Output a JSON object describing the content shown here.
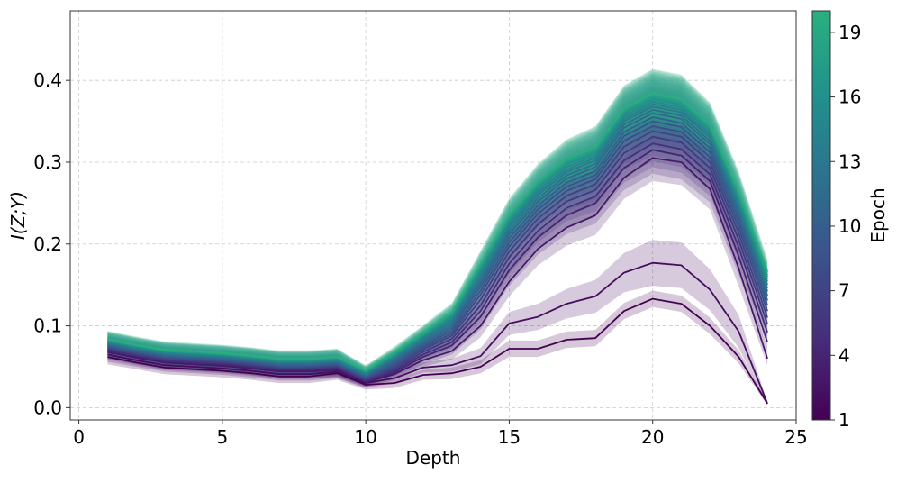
{
  "colors": {
    "viridis_stops": [
      "#440154",
      "#472d7b",
      "#3b528b",
      "#2c728e",
      "#21918c",
      "#28ae80",
      "#5ec962",
      "#addc30"
    ],
    "colormap_max_fraction": 0.72
  },
  "chart_data": {
    "type": "line",
    "xlabel": "Depth",
    "ylabel": "I(Z;Y)",
    "xlim": [
      -0.3,
      25.0
    ],
    "ylim": [
      -0.015,
      0.485
    ],
    "xticks": [
      0,
      5,
      10,
      15,
      20,
      25
    ],
    "yticks": [
      0.0,
      0.1,
      0.2,
      0.3,
      0.4
    ],
    "grid": true,
    "colorbar": {
      "label": "Epoch",
      "min": 1,
      "max": 20,
      "ticks": [
        1,
        4,
        7,
        10,
        13,
        16,
        19
      ]
    },
    "x": [
      1,
      2,
      3,
      4,
      5,
      6,
      7,
      8,
      9,
      10,
      11,
      12,
      13,
      14,
      15,
      16,
      17,
      18,
      19,
      20,
      21,
      22,
      23,
      24
    ],
    "series": [
      {
        "name": "Epoch 1",
        "epoch": 1,
        "values": [
          0.062,
          0.055,
          0.049,
          0.047,
          0.045,
          0.042,
          0.038,
          0.038,
          0.042,
          0.028,
          0.03,
          0.04,
          0.042,
          0.05,
          0.072,
          0.072,
          0.083,
          0.085,
          0.118,
          0.133,
          0.127,
          0.1,
          0.062,
          0.005
        ],
        "band": [
          0.009,
          0.008,
          0.008,
          0.008,
          0.008,
          0.008,
          0.008,
          0.008,
          0.008,
          0.006,
          0.006,
          0.006,
          0.007,
          0.008,
          0.01,
          0.01,
          0.01,
          0.01,
          0.01,
          0.01,
          0.01,
          0.01,
          0.008,
          0.002
        ]
      },
      {
        "name": "Epoch 2",
        "epoch": 2,
        "values": [
          0.065,
          0.058,
          0.052,
          0.05,
          0.048,
          0.045,
          0.041,
          0.041,
          0.044,
          0.03,
          0.036,
          0.049,
          0.052,
          0.063,
          0.103,
          0.111,
          0.127,
          0.136,
          0.165,
          0.177,
          0.174,
          0.144,
          0.093,
          0.005
        ],
        "band": [
          0.009,
          0.008,
          0.008,
          0.008,
          0.008,
          0.008,
          0.008,
          0.008,
          0.008,
          0.006,
          0.006,
          0.006,
          0.008,
          0.01,
          0.014,
          0.016,
          0.018,
          0.02,
          0.024,
          0.028,
          0.028,
          0.025,
          0.02,
          0.002
        ]
      },
      {
        "name": "Epoch 3",
        "epoch": 3,
        "values": [
          0.068,
          0.061,
          0.055,
          0.053,
          0.051,
          0.048,
          0.044,
          0.044,
          0.046,
          0.031,
          0.041,
          0.058,
          0.069,
          0.1,
          0.154,
          0.194,
          0.22,
          0.235,
          0.281,
          0.305,
          0.3,
          0.267,
          0.17,
          0.06
        ],
        "band": [
          0.009,
          0.009,
          0.009,
          0.009,
          0.009,
          0.009,
          0.009,
          0.009,
          0.009,
          0.006,
          0.007,
          0.008,
          0.01,
          0.014,
          0.018,
          0.02,
          0.022,
          0.024,
          0.026,
          0.028,
          0.028,
          0.025,
          0.022,
          0.008
        ]
      },
      {
        "name": "Epoch 4",
        "epoch": 4,
        "values": [
          0.07,
          0.063,
          0.057,
          0.055,
          0.053,
          0.05,
          0.046,
          0.046,
          0.048,
          0.032,
          0.043,
          0.062,
          0.076,
          0.111,
          0.168,
          0.208,
          0.235,
          0.25,
          0.293,
          0.315,
          0.308,
          0.277,
          0.185,
          0.08
        ],
        "band": [
          0.01,
          0.01,
          0.01,
          0.01,
          0.01,
          0.01,
          0.01,
          0.01,
          0.01,
          0.006,
          0.007,
          0.009,
          0.011,
          0.015,
          0.019,
          0.021,
          0.023,
          0.025,
          0.027,
          0.029,
          0.029,
          0.026,
          0.023,
          0.01
        ]
      },
      {
        "name": "Epoch 5",
        "epoch": 5,
        "values": [
          0.071,
          0.064,
          0.058,
          0.056,
          0.054,
          0.051,
          0.047,
          0.047,
          0.049,
          0.033,
          0.045,
          0.065,
          0.08,
          0.118,
          0.176,
          0.216,
          0.244,
          0.258,
          0.302,
          0.323,
          0.316,
          0.285,
          0.196,
          0.092
        ],
        "band": [
          0.01,
          0.01,
          0.01,
          0.01,
          0.01,
          0.01,
          0.01,
          0.01,
          0.01,
          0.006,
          0.007,
          0.009,
          0.011,
          0.015,
          0.019,
          0.021,
          0.023,
          0.025,
          0.027,
          0.029,
          0.029,
          0.026,
          0.023,
          0.012
        ]
      },
      {
        "name": "Epoch 6",
        "epoch": 6,
        "values": [
          0.072,
          0.065,
          0.059,
          0.057,
          0.055,
          0.052,
          0.048,
          0.048,
          0.05,
          0.034,
          0.047,
          0.068,
          0.084,
          0.125,
          0.184,
          0.224,
          0.252,
          0.266,
          0.311,
          0.331,
          0.324,
          0.293,
          0.205,
          0.102
        ],
        "band": [
          0.01,
          0.01,
          0.01,
          0.01,
          0.01,
          0.01,
          0.01,
          0.01,
          0.01,
          0.006,
          0.007,
          0.009,
          0.011,
          0.015,
          0.02,
          0.022,
          0.024,
          0.026,
          0.028,
          0.03,
          0.03,
          0.027,
          0.024,
          0.013
        ]
      },
      {
        "name": "Epoch 7",
        "epoch": 7,
        "values": [
          0.073,
          0.066,
          0.06,
          0.058,
          0.056,
          0.053,
          0.049,
          0.049,
          0.051,
          0.035,
          0.049,
          0.071,
          0.088,
          0.132,
          0.191,
          0.231,
          0.259,
          0.273,
          0.319,
          0.338,
          0.331,
          0.3,
          0.213,
          0.11
        ],
        "band": [
          0.01,
          0.01,
          0.01,
          0.01,
          0.01,
          0.01,
          0.01,
          0.01,
          0.01,
          0.006,
          0.007,
          0.009,
          0.011,
          0.016,
          0.02,
          0.022,
          0.024,
          0.026,
          0.028,
          0.03,
          0.03,
          0.027,
          0.024,
          0.014
        ]
      },
      {
        "name": "Epoch 8",
        "epoch": 8,
        "values": [
          0.074,
          0.067,
          0.061,
          0.059,
          0.057,
          0.054,
          0.05,
          0.05,
          0.052,
          0.036,
          0.051,
          0.073,
          0.091,
          0.138,
          0.197,
          0.237,
          0.265,
          0.279,
          0.326,
          0.344,
          0.337,
          0.306,
          0.22,
          0.118
        ],
        "band": [
          0.01,
          0.01,
          0.01,
          0.01,
          0.01,
          0.01,
          0.01,
          0.01,
          0.01,
          0.006,
          0.007,
          0.009,
          0.011,
          0.016,
          0.02,
          0.022,
          0.024,
          0.026,
          0.028,
          0.03,
          0.03,
          0.027,
          0.024,
          0.014
        ]
      },
      {
        "name": "Epoch 9",
        "epoch": 9,
        "values": [
          0.075,
          0.068,
          0.062,
          0.06,
          0.058,
          0.055,
          0.051,
          0.051,
          0.053,
          0.037,
          0.053,
          0.075,
          0.094,
          0.143,
          0.202,
          0.242,
          0.27,
          0.284,
          0.332,
          0.35,
          0.343,
          0.312,
          0.226,
          0.125
        ],
        "band": [
          0.01,
          0.01,
          0.01,
          0.01,
          0.01,
          0.01,
          0.01,
          0.01,
          0.01,
          0.006,
          0.007,
          0.009,
          0.011,
          0.016,
          0.02,
          0.022,
          0.024,
          0.026,
          0.028,
          0.03,
          0.03,
          0.027,
          0.024,
          0.015
        ]
      },
      {
        "name": "Epoch 10",
        "epoch": 10,
        "values": [
          0.076,
          0.069,
          0.063,
          0.061,
          0.059,
          0.056,
          0.052,
          0.052,
          0.054,
          0.038,
          0.055,
          0.077,
          0.097,
          0.148,
          0.207,
          0.247,
          0.275,
          0.289,
          0.337,
          0.355,
          0.348,
          0.317,
          0.232,
          0.131
        ],
        "band": [
          0.01,
          0.01,
          0.01,
          0.01,
          0.01,
          0.01,
          0.01,
          0.01,
          0.01,
          0.006,
          0.007,
          0.009,
          0.011,
          0.016,
          0.02,
          0.022,
          0.024,
          0.026,
          0.028,
          0.03,
          0.03,
          0.027,
          0.024,
          0.015
        ]
      },
      {
        "name": "Epoch 11",
        "epoch": 11,
        "values": [
          0.077,
          0.07,
          0.064,
          0.062,
          0.06,
          0.057,
          0.053,
          0.053,
          0.055,
          0.039,
          0.057,
          0.079,
          0.1,
          0.152,
          0.212,
          0.252,
          0.28,
          0.294,
          0.342,
          0.36,
          0.353,
          0.322,
          0.237,
          0.137
        ],
        "band": [
          0.01,
          0.01,
          0.01,
          0.01,
          0.01,
          0.01,
          0.01,
          0.01,
          0.01,
          0.006,
          0.007,
          0.009,
          0.011,
          0.016,
          0.02,
          0.022,
          0.024,
          0.026,
          0.028,
          0.03,
          0.03,
          0.027,
          0.024,
          0.015
        ]
      },
      {
        "name": "Epoch 12",
        "epoch": 12,
        "values": [
          0.078,
          0.071,
          0.065,
          0.063,
          0.061,
          0.058,
          0.054,
          0.054,
          0.056,
          0.04,
          0.059,
          0.081,
          0.103,
          0.156,
          0.216,
          0.256,
          0.284,
          0.298,
          0.346,
          0.364,
          0.357,
          0.326,
          0.242,
          0.142
        ],
        "band": [
          0.01,
          0.01,
          0.01,
          0.01,
          0.01,
          0.01,
          0.01,
          0.01,
          0.01,
          0.006,
          0.007,
          0.009,
          0.011,
          0.016,
          0.02,
          0.022,
          0.024,
          0.026,
          0.028,
          0.03,
          0.03,
          0.027,
          0.024,
          0.015
        ]
      },
      {
        "name": "Epoch 13",
        "epoch": 13,
        "values": [
          0.079,
          0.072,
          0.066,
          0.064,
          0.062,
          0.059,
          0.055,
          0.055,
          0.057,
          0.041,
          0.061,
          0.083,
          0.106,
          0.16,
          0.22,
          0.26,
          0.288,
          0.302,
          0.35,
          0.368,
          0.361,
          0.33,
          0.246,
          0.146
        ],
        "band": [
          0.01,
          0.01,
          0.01,
          0.01,
          0.01,
          0.01,
          0.01,
          0.01,
          0.01,
          0.006,
          0.007,
          0.009,
          0.011,
          0.016,
          0.02,
          0.022,
          0.024,
          0.026,
          0.028,
          0.03,
          0.03,
          0.027,
          0.024,
          0.015
        ]
      },
      {
        "name": "Epoch 14",
        "epoch": 14,
        "values": [
          0.08,
          0.073,
          0.067,
          0.065,
          0.063,
          0.06,
          0.056,
          0.056,
          0.058,
          0.042,
          0.062,
          0.085,
          0.108,
          0.163,
          0.223,
          0.263,
          0.291,
          0.305,
          0.353,
          0.371,
          0.364,
          0.333,
          0.25,
          0.15
        ],
        "band": [
          0.01,
          0.01,
          0.01,
          0.01,
          0.01,
          0.01,
          0.01,
          0.01,
          0.01,
          0.006,
          0.007,
          0.009,
          0.011,
          0.016,
          0.02,
          0.022,
          0.024,
          0.026,
          0.028,
          0.03,
          0.03,
          0.027,
          0.024,
          0.015
        ]
      },
      {
        "name": "Epoch 15",
        "epoch": 15,
        "values": [
          0.081,
          0.074,
          0.068,
          0.066,
          0.064,
          0.061,
          0.057,
          0.057,
          0.059,
          0.043,
          0.063,
          0.087,
          0.11,
          0.166,
          0.226,
          0.266,
          0.294,
          0.308,
          0.356,
          0.374,
          0.367,
          0.336,
          0.253,
          0.154
        ],
        "band": [
          0.01,
          0.01,
          0.01,
          0.01,
          0.01,
          0.01,
          0.01,
          0.01,
          0.01,
          0.006,
          0.007,
          0.009,
          0.011,
          0.016,
          0.02,
          0.022,
          0.024,
          0.026,
          0.028,
          0.03,
          0.03,
          0.027,
          0.024,
          0.015
        ]
      },
      {
        "name": "Epoch 16",
        "epoch": 16,
        "values": [
          0.082,
          0.075,
          0.069,
          0.067,
          0.065,
          0.062,
          0.058,
          0.058,
          0.06,
          0.044,
          0.064,
          0.088,
          0.112,
          0.169,
          0.229,
          0.269,
          0.297,
          0.311,
          0.359,
          0.377,
          0.37,
          0.339,
          0.256,
          0.157
        ],
        "band": [
          0.01,
          0.01,
          0.01,
          0.01,
          0.01,
          0.01,
          0.01,
          0.01,
          0.01,
          0.006,
          0.007,
          0.009,
          0.011,
          0.016,
          0.02,
          0.022,
          0.024,
          0.026,
          0.028,
          0.03,
          0.03,
          0.027,
          0.024,
          0.015
        ]
      },
      {
        "name": "Epoch 17",
        "epoch": 17,
        "values": [
          0.082,
          0.075,
          0.069,
          0.067,
          0.065,
          0.062,
          0.058,
          0.058,
          0.061,
          0.044,
          0.065,
          0.089,
          0.113,
          0.171,
          0.231,
          0.271,
          0.299,
          0.313,
          0.361,
          0.379,
          0.372,
          0.341,
          0.259,
          0.16
        ],
        "band": [
          0.01,
          0.01,
          0.01,
          0.01,
          0.01,
          0.01,
          0.01,
          0.01,
          0.01,
          0.006,
          0.007,
          0.009,
          0.011,
          0.016,
          0.02,
          0.022,
          0.024,
          0.026,
          0.028,
          0.03,
          0.03,
          0.027,
          0.024,
          0.015
        ]
      },
      {
        "name": "Epoch 18",
        "epoch": 18,
        "values": [
          0.083,
          0.076,
          0.07,
          0.068,
          0.066,
          0.063,
          0.059,
          0.059,
          0.061,
          0.045,
          0.066,
          0.09,
          0.115,
          0.173,
          0.233,
          0.273,
          0.301,
          0.315,
          0.363,
          0.381,
          0.374,
          0.343,
          0.261,
          0.162
        ],
        "band": [
          0.01,
          0.01,
          0.01,
          0.01,
          0.01,
          0.01,
          0.01,
          0.01,
          0.01,
          0.006,
          0.007,
          0.009,
          0.011,
          0.016,
          0.02,
          0.022,
          0.024,
          0.026,
          0.028,
          0.03,
          0.03,
          0.027,
          0.024,
          0.015
        ]
      },
      {
        "name": "Epoch 19",
        "epoch": 19,
        "values": [
          0.083,
          0.076,
          0.07,
          0.068,
          0.066,
          0.063,
          0.059,
          0.059,
          0.062,
          0.045,
          0.067,
          0.091,
          0.116,
          0.175,
          0.235,
          0.275,
          0.303,
          0.317,
          0.365,
          0.383,
          0.376,
          0.345,
          0.263,
          0.165
        ],
        "band": [
          0.01,
          0.01,
          0.01,
          0.01,
          0.01,
          0.01,
          0.01,
          0.01,
          0.01,
          0.006,
          0.007,
          0.009,
          0.011,
          0.016,
          0.02,
          0.022,
          0.024,
          0.026,
          0.028,
          0.03,
          0.03,
          0.027,
          0.024,
          0.015
        ]
      },
      {
        "name": "Epoch 20",
        "epoch": 20,
        "values": [
          0.084,
          0.077,
          0.071,
          0.069,
          0.067,
          0.064,
          0.06,
          0.06,
          0.062,
          0.046,
          0.068,
          0.092,
          0.117,
          0.176,
          0.236,
          0.276,
          0.304,
          0.318,
          0.366,
          0.384,
          0.377,
          0.346,
          0.265,
          0.167
        ],
        "band": [
          0.01,
          0.01,
          0.01,
          0.01,
          0.01,
          0.01,
          0.01,
          0.01,
          0.01,
          0.006,
          0.007,
          0.009,
          0.011,
          0.016,
          0.02,
          0.022,
          0.024,
          0.026,
          0.028,
          0.03,
          0.03,
          0.027,
          0.024,
          0.015
        ]
      }
    ]
  }
}
